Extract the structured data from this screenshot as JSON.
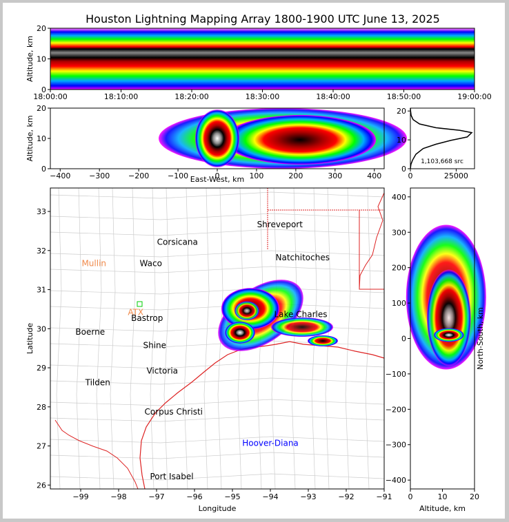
{
  "title": "Houston Lightning Mapping Array 1800-1900 UTC June 13, 2025",
  "colors": {
    "density_scale": [
      "#ff00ff",
      "#8800ff",
      "#0000ff",
      "#0088ff",
      "#00ffff",
      "#00ff00",
      "#aaff00",
      "#ffff00",
      "#ffaa00",
      "#ff0000",
      "#aa0000",
      "#000000",
      "#888888",
      "#ffffff"
    ],
    "city_default": "#000000",
    "station_orange": "#f08a4b",
    "station_blue": "#0000ff",
    "county_lines": "#bbbbbb",
    "coast_state_lines": "#dd2222",
    "station_marker": "#00cc00"
  },
  "chart_data": [
    {
      "type": "heatmap",
      "name": "altitude-time",
      "xlabel": "",
      "ylabel": "Altitude, km",
      "xticks": [
        "18:00:00",
        "18:10:00",
        "18:20:00",
        "18:30:00",
        "18:40:00",
        "18:50:00",
        "19:00:00"
      ],
      "yticks": [
        "0",
        "10",
        "20"
      ],
      "xlim": [
        "18:00:00",
        "19:00:00"
      ],
      "ylim": [
        0,
        20
      ],
      "peak_altitude_km": 12
    },
    {
      "type": "heatmap",
      "name": "altitude-east-west",
      "xlabel": "East-West, km",
      "ylabel": "Altitude, km",
      "xticks": [
        "−400",
        "−300",
        "−200",
        "−100",
        "0",
        "100",
        "200",
        "300",
        "400"
      ],
      "yticks": [
        "0",
        "10",
        "20"
      ],
      "xlim": [
        -425,
        425
      ],
      "ylim": [
        0,
        20
      ],
      "core_east_west_km": 0,
      "core_altitude_km": 10
    },
    {
      "type": "line",
      "name": "source-count-altitude",
      "xticks": [
        "0",
        "25000"
      ],
      "yticks": [
        "0",
        "10",
        "20"
      ],
      "xlim": [
        0,
        35000
      ],
      "ylim": [
        0,
        21
      ],
      "annotation": "1,103,668 src",
      "series": [
        {
          "x": [
            0,
            300,
            1200,
            3000,
            7000,
            14000,
            22000,
            31000,
            33500,
            27000,
            14000,
            5000,
            1500,
            400,
            100,
            0
          ],
          "y": [
            0,
            1.5,
            3,
            5,
            7,
            8.5,
            9.8,
            11,
            12.5,
            13.3,
            14.2,
            15.5,
            17,
            18.5,
            20,
            21
          ]
        }
      ]
    },
    {
      "type": "heatmap",
      "name": "plan-view-map",
      "xlabel": "Longitude",
      "ylabel": "Latitude",
      "xticks": [
        "−99",
        "−98",
        "−97",
        "−96",
        "−95",
        "−94",
        "−93",
        "−92",
        "−91"
      ],
      "yticks": [
        "26",
        "27",
        "28",
        "29",
        "30",
        "31",
        "32",
        "33"
      ],
      "xlim": [
        -99.8,
        -91
      ],
      "ylim": [
        25.9,
        33.6
      ],
      "storm_cores": [
        {
          "lon": -94.8,
          "lat": 29.9
        },
        {
          "lon": -94.8,
          "lat": 30.6
        }
      ]
    },
    {
      "type": "heatmap",
      "name": "north-south-altitude",
      "xlabel": "Altitude, km",
      "ylabel": "North-South, km",
      "xticks": [
        "0",
        "10",
        "20"
      ],
      "yticks": [
        "−400",
        "−300",
        "−200",
        "−100",
        "0",
        "100",
        "200",
        "300",
        "400"
      ],
      "xlim": [
        0,
        20
      ],
      "ylim": [
        -425,
        425
      ],
      "core_north_south_km": 0,
      "core_altitude_km": 12
    }
  ],
  "cities": [
    {
      "name": "Shreveport",
      "lon": -93.75,
      "lat": 32.6,
      "kind": "city"
    },
    {
      "name": "Corsicana",
      "lon": -96.45,
      "lat": 32.15,
      "kind": "city"
    },
    {
      "name": "Natchitoches",
      "lon": -93.15,
      "lat": 31.75,
      "kind": "city"
    },
    {
      "name": "Mullin",
      "lon": -98.65,
      "lat": 31.6,
      "kind": "station_orange"
    },
    {
      "name": "Waco",
      "lon": -97.15,
      "lat": 31.6,
      "kind": "city"
    },
    {
      "name": "ATX",
      "lon": -97.55,
      "lat": 30.35,
      "kind": "station_orange"
    },
    {
      "name": "Bastrop",
      "lon": -97.25,
      "lat": 30.2,
      "kind": "city"
    },
    {
      "name": "Lake Charles",
      "lon": -93.2,
      "lat": 30.3,
      "kind": "city"
    },
    {
      "name": "Boerne",
      "lon": -98.75,
      "lat": 29.85,
      "kind": "city"
    },
    {
      "name": "Shine",
      "lon": -97.05,
      "lat": 29.5,
      "kind": "city"
    },
    {
      "name": "Victoria",
      "lon": -96.85,
      "lat": 28.85,
      "kind": "city"
    },
    {
      "name": "Tilden",
      "lon": -98.55,
      "lat": 28.55,
      "kind": "city"
    },
    {
      "name": "Corpus Christi",
      "lon": -96.55,
      "lat": 27.8,
      "kind": "city"
    },
    {
      "name": "Hoover-Diana",
      "lon": -94.0,
      "lat": 27.0,
      "kind": "station_blue"
    },
    {
      "name": "Port Isabel",
      "lon": -96.6,
      "lat": 26.15,
      "kind": "city"
    }
  ]
}
